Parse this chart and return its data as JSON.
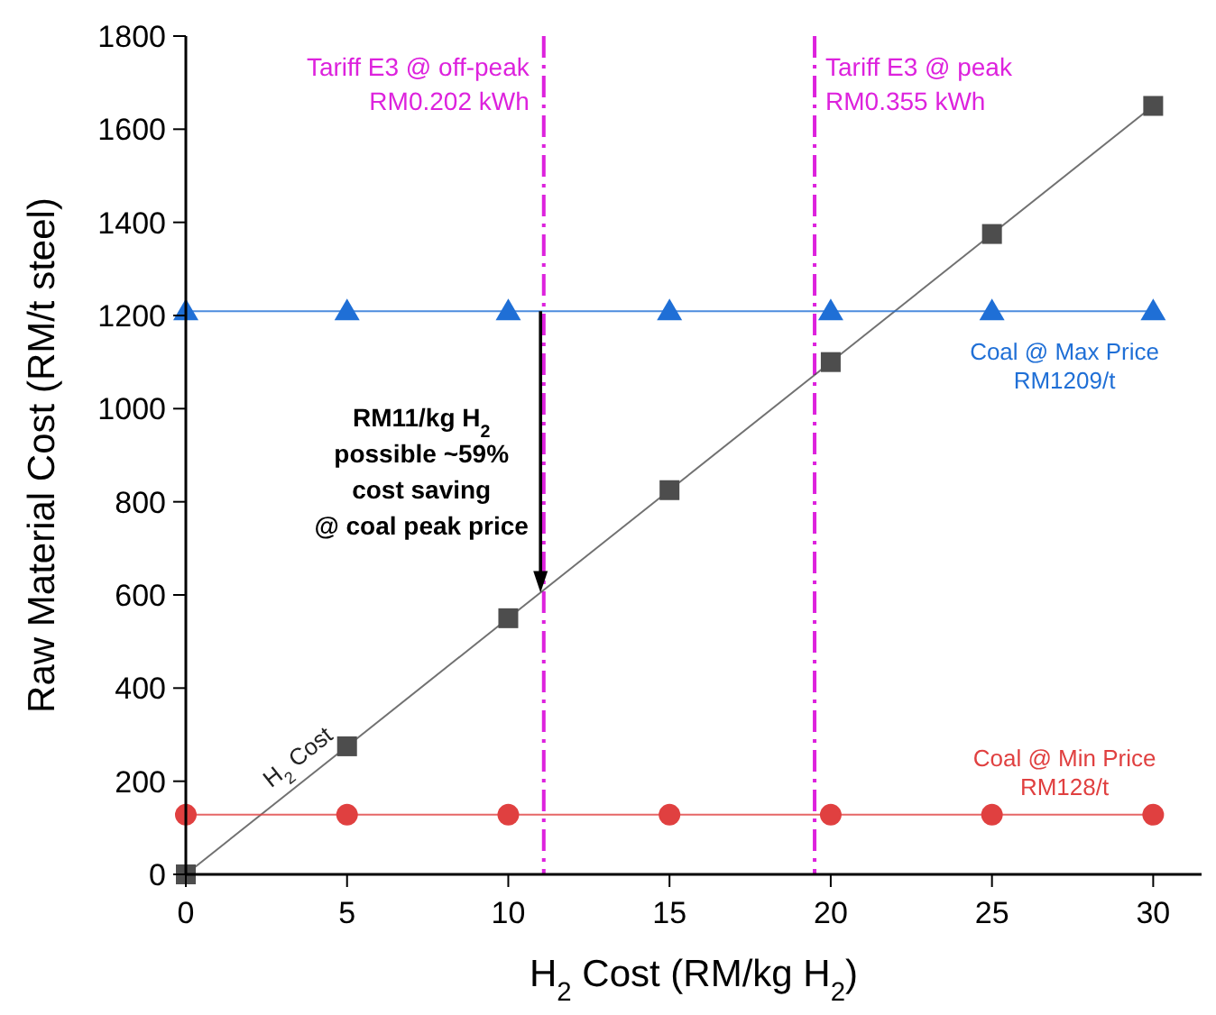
{
  "chart_data": {
    "type": "line",
    "xlabel": "H$_{2}$ Cost (RM/kg H$_{2}$)",
    "ylabel": "Raw Material Cost (RM/t steel)",
    "x": [
      0,
      5,
      10,
      15,
      20,
      25,
      30
    ],
    "xlim": [
      0,
      31.5
    ],
    "xticks": [
      0,
      5,
      10,
      15,
      20,
      25,
      30
    ],
    "ylim": [
      0,
      1800
    ],
    "yticks": [
      0,
      200,
      400,
      600,
      800,
      1000,
      1200,
      1400,
      1600,
      1800
    ],
    "series": [
      {
        "name": "H$_{2}$ Cost",
        "color": "#4d4d4d",
        "marker": "square",
        "values": [
          0,
          275,
          550,
          825,
          1100,
          1375,
          1650
        ]
      },
      {
        "name": "Coal @ Max Price\nRM1209/t",
        "color": "#1f6fd6",
        "marker": "triangle",
        "values": [
          1209,
          1209,
          1209,
          1209,
          1209,
          1209,
          1209
        ]
      },
      {
        "name": "Coal @ Min Price\nRM128/t",
        "color": "#e04040",
        "marker": "circle",
        "values": [
          128,
          128,
          128,
          128,
          128,
          128,
          128
        ]
      }
    ],
    "ref_lines": [
      {
        "axis": "x",
        "value": 11.1,
        "label": "Tariff E3 @ off-peak\nRM0.202 kWh",
        "color": "#dd22dd",
        "line_style": "dashed"
      },
      {
        "axis": "x",
        "value": 19.5,
        "label": "Tariff E3 @ peak\nRM0.355 kWh",
        "color": "#dd22dd",
        "line_style": "dashed"
      }
    ],
    "annotations": [
      {
        "text": "RM11/kg H$_{2}$\npossible ~59%\ncost saving\n@ coal peak price",
        "x": 11,
        "y": 605
      }
    ],
    "grid": false
  }
}
